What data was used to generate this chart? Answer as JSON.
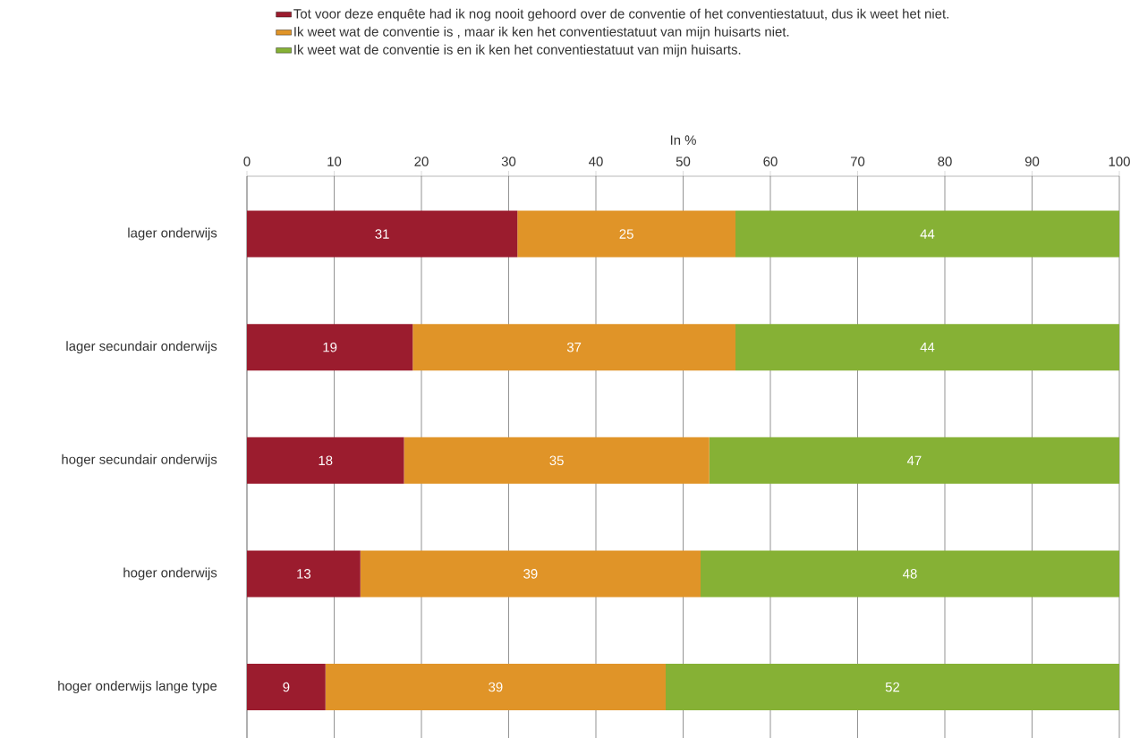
{
  "chart_data": {
    "type": "bar",
    "orientation": "horizontal",
    "stacked": true,
    "xlabel": "In %",
    "categories": [
      "lager onderwijs",
      "lager secundair onderwijs",
      "hoger secundair onderwijs",
      "hoger onderwijs",
      "hoger onderwijs lange type"
    ],
    "series": [
      {
        "name": "Tot voor deze enquête had ik nog nooit gehoord over de conventie of het conventiestatuut, dus ik weet het niet.",
        "color": "#9b1c2e",
        "values": [
          31,
          19,
          18,
          13,
          9
        ]
      },
      {
        "name": "Ik weet wat de conventie is , maar ik ken het conventiestatuut van mijn huisarts niet.",
        "color": "#e09428",
        "values": [
          25,
          37,
          35,
          39,
          39
        ]
      },
      {
        "name": "Ik weet wat de conventie is en ik ken het conventiestatuut van mijn huisarts.",
        "color": "#86b135",
        "values": [
          44,
          44,
          47,
          48,
          52
        ]
      }
    ],
    "xlim": [
      0,
      100
    ],
    "xticks": [
      0,
      10,
      20,
      30,
      40,
      50,
      60,
      70,
      80,
      90,
      100
    ],
    "grid": "x",
    "legend": "top",
    "data_labels": true
  }
}
